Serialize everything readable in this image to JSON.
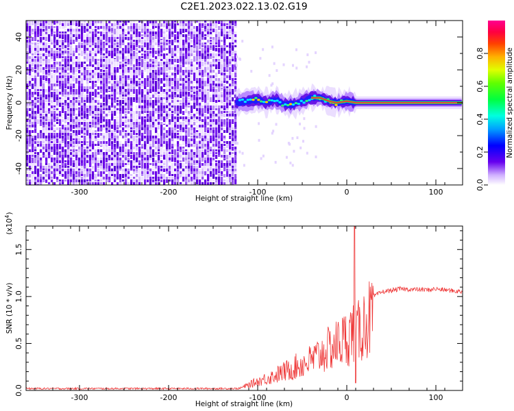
{
  "title": "C2E1.2023.022.13.02.G19",
  "chart_data": [
    {
      "type": "heatmap",
      "xlabel": "Height of straight line (km)",
      "ylabel": "Frequency (Hz)",
      "xlim": [
        -360,
        130
      ],
      "ylim": [
        -50,
        50
      ],
      "xticks": [
        "-300",
        "-200",
        "-100",
        "0",
        "100"
      ],
      "yticks": [
        "40",
        "20",
        "0",
        "-20",
        "-40"
      ],
      "xtick_values": [
        -300,
        -200,
        -100,
        0,
        100
      ],
      "ytick_values": [
        40,
        20,
        0,
        -20,
        -40
      ],
      "noise_region_xmax": -125,
      "ridge": [
        {
          "x": -125,
          "y": 0
        },
        {
          "x": -110,
          "y": 1
        },
        {
          "x": -100,
          "y": 2
        },
        {
          "x": -90,
          "y": 0
        },
        {
          "x": -80,
          "y": 2
        },
        {
          "x": -70,
          "y": -1
        },
        {
          "x": -60,
          "y": -1
        },
        {
          "x": -50,
          "y": 1
        },
        {
          "x": -40,
          "y": 3
        },
        {
          "x": -30,
          "y": 3
        },
        {
          "x": -20,
          "y": 1
        },
        {
          "x": -12,
          "y": 0
        },
        {
          "x": -5,
          "y": 0.5
        },
        {
          "x": 0,
          "y": 1
        },
        {
          "x": 10,
          "y": 0
        },
        {
          "x": 130,
          "y": 0
        }
      ],
      "colorbar": {
        "label": "Normalized spectral amplitude",
        "ticks": [
          "0.0",
          "0.2",
          "0.4",
          "0.6",
          "0.8"
        ],
        "tick_values": [
          0.0,
          0.2,
          0.4,
          0.6,
          0.8
        ],
        "range": [
          0,
          1
        ]
      }
    },
    {
      "type": "line",
      "xlabel": "Height of straight line (km)",
      "ylabel": "SNR (10 * v/v)",
      "y_multiplier": "(x10",
      "y_multiplier_exp": "4",
      "y_multiplier_close": ")",
      "xlim": [
        -360,
        130
      ],
      "ylim": [
        0,
        1.75
      ],
      "xticks": [
        "-300",
        "-200",
        "-100",
        "0",
        "100"
      ],
      "yticks": [
        "0.0",
        "0.5",
        "1.0",
        "1.5"
      ],
      "xtick_values": [
        -300,
        -200,
        -100,
        0,
        100
      ],
      "ytick_values": [
        0.0,
        0.5,
        1.0,
        1.5
      ],
      "line_color": "#ee3333",
      "envelope": [
        {
          "x": -360,
          "y": 0.02
        },
        {
          "x": -150,
          "y": 0.02
        },
        {
          "x": -120,
          "y": 0.03
        },
        {
          "x": -100,
          "y": 0.12
        },
        {
          "x": -80,
          "y": 0.2
        },
        {
          "x": -60,
          "y": 0.3
        },
        {
          "x": -40,
          "y": 0.4
        },
        {
          "x": -20,
          "y": 0.55
        },
        {
          "x": 0,
          "y": 0.7
        },
        {
          "x": 8,
          "y": 0.8
        },
        {
          "x": 12,
          "y": 0.75
        },
        {
          "x": 20,
          "y": 0.9
        },
        {
          "x": 30,
          "y": 1.0
        },
        {
          "x": 40,
          "y": 1.05
        },
        {
          "x": 60,
          "y": 1.08
        },
        {
          "x": 90,
          "y": 1.07
        },
        {
          "x": 100,
          "y": 1.08
        },
        {
          "x": 130,
          "y": 1.05
        }
      ],
      "spike": {
        "x": 9,
        "y": 1.75
      },
      "dip": {
        "x": 10,
        "y": 0.08
      }
    }
  ]
}
